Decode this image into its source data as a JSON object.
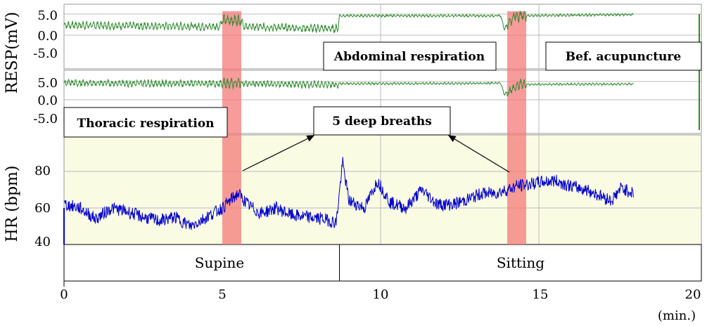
{
  "chart_data": {
    "type": "line",
    "x_unit": "(min.)",
    "xlim": [
      0,
      20
    ],
    "x_ticks": [
      "0",
      "5",
      "10",
      "15",
      "20"
    ],
    "panels": [
      {
        "id": "abdominal",
        "ylabel_group": "RESP(mV)",
        "y_ticks": [
          "5.0",
          "0.0",
          "-5.0"
        ],
        "series": [
          {
            "label": "Abdominal respiration",
            "x": [
              0,
              4.9,
              5.0,
              5.6,
              5.7,
              8.65,
              8.7,
              13.8,
              13.9,
              14.2,
              14.3,
              18.0
            ],
            "y": [
              2.4,
              2.0,
              3.5,
              3.5,
              2.0,
              1.5,
              4.6,
              4.6,
              1.5,
              4.3,
              4.6,
              4.9
            ]
          }
        ],
        "annotations": [
          "Bef. acupuncture"
        ]
      },
      {
        "id": "thoracic",
        "y_ticks": [
          "5.0",
          "0.0",
          "-5.0"
        ],
        "series": [
          {
            "label": "Thoracic respiration",
            "x": [
              0,
              4.9,
              5.0,
              5.6,
              5.7,
              8.65,
              8.7,
              13.8,
              13.9,
              14.3,
              14.4,
              18.0
            ],
            "y": [
              4.6,
              4.4,
              4.4,
              4.6,
              4.4,
              4.1,
              4.4,
              4.5,
              1.5,
              3.6,
              4.2,
              4.3
            ]
          }
        ]
      },
      {
        "id": "hr",
        "ylabel": "HR (bpm)",
        "y_ticks": [
          "40",
          "60",
          "80"
        ],
        "ylim": [
          40,
          100
        ],
        "series": [
          {
            "label": "HR",
            "x": [
              0,
              0.5,
              1.0,
              1.5,
              2.0,
              2.5,
              3.0,
              3.5,
              4.0,
              4.5,
              5.0,
              5.5,
              5.8,
              6.2,
              6.7,
              7.2,
              7.7,
              8.2,
              8.6,
              8.8,
              9.0,
              9.5,
              9.9,
              10.3,
              10.8,
              11.3,
              11.8,
              12.3,
              12.8,
              13.2,
              13.6,
              14.0,
              14.3,
              14.7,
              15.0,
              15.5,
              16.0,
              16.5,
              16.9,
              17.3,
              17.6,
              18.0
            ],
            "y": [
              62,
              60,
              54,
              60,
              58,
              55,
              53,
              55,
              50,
              55,
              60,
              68,
              62,
              57,
              60,
              56,
              55,
              54,
              52,
              85,
              64,
              60,
              75,
              63,
              60,
              70,
              62,
              62,
              65,
              68,
              68,
              70,
              72,
              73,
              74,
              75,
              72,
              70,
              67,
              64,
              71,
              68
            ]
          }
        ],
        "annotations": [
          "5 deep breaths"
        ]
      }
    ],
    "deep_breath_bands": [
      [
        5.0,
        5.6
      ],
      [
        14.0,
        14.6
      ]
    ],
    "states": [
      "Supine",
      "Sitting"
    ],
    "state_boundary_x": 8.7,
    "colors": {
      "resp": "#2e8b2e",
      "hr": "#0000cc",
      "band": "#f47a7a",
      "hr_bg": "#fafbe3"
    }
  },
  "labels": {
    "resp_ylabel": "RESP(mV)",
    "hr_ylabel": "HR (bpm)",
    "abdominal": "Abdominal respiration",
    "bef_acupuncture": "Bef. acupuncture",
    "thoracic": "Thoracic respiration",
    "deep_breaths": "5 deep breaths",
    "supine": "Supine",
    "sitting": "Sitting",
    "x_unit": "(min.)",
    "resp_ticks_1": [
      "5.0",
      "0.0",
      "-5.0"
    ],
    "resp_ticks_2": [
      "5.0",
      "0.0",
      "-5.0"
    ],
    "hr_ticks": [
      "80",
      "60",
      "40"
    ],
    "x_ticks": [
      "0",
      "5",
      "10",
      "15",
      "20"
    ]
  }
}
